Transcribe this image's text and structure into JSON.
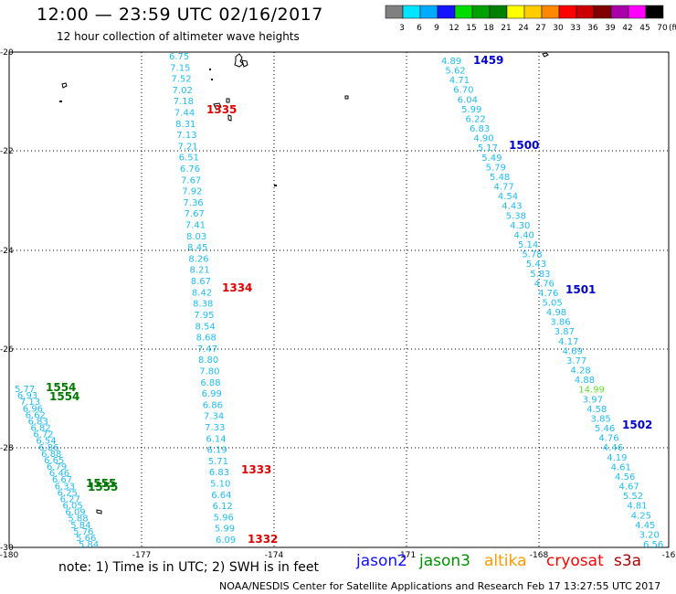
{
  "header": {
    "title": "12:00 — 23:59 UTC 02/16/2017",
    "subtitle": "12 hour collection of altimeter wave heights"
  },
  "colorbar": {
    "unit": "(ft)",
    "labels": [
      "3",
      "6",
      "9",
      "12",
      "15",
      "18",
      "21",
      "24",
      "27",
      "30",
      "33",
      "36",
      "39",
      "42",
      "45",
      "70"
    ],
    "colors": [
      "#808080",
      "#00e4ff",
      "#00aaff",
      "#1414ff",
      "#00dc00",
      "#00a000",
      "#008000",
      "#ffff00",
      "#ffcc00",
      "#ff8800",
      "#ff0000",
      "#cc0000",
      "#800000",
      "#aa00aa",
      "#ff00ff",
      "#000000"
    ]
  },
  "axes": {
    "x_ticks": [
      "-180",
      "-177",
      "-174",
      "-171",
      "-168",
      "-16"
    ],
    "y_ticks": [
      "-20",
      "-22",
      "-24",
      "-26",
      "-28",
      "-30"
    ]
  },
  "legend": {
    "note": "note: 1) Time is in UTC; 2) SWH is in feet",
    "satellites": [
      {
        "name": "jason2",
        "color": "#1010ff"
      },
      {
        "name": "jason3",
        "color": "#009000"
      },
      {
        "name": "altika",
        "color": "#ff9900"
      },
      {
        "name": "cryosat",
        "color": "#ff0000"
      },
      {
        "name": "s3a",
        "color": "#aa0000"
      }
    ]
  },
  "credit": "NOAA/NESDIS Center for Satellite Applications and Research   Feb 17 13:27:55 UTC 2017",
  "tracks": [
    {
      "id": "track-a-cryosat",
      "time_labels": [
        {
          "text": "1335",
          "color": "#dd0000"
        },
        {
          "text": "1334",
          "color": "#dd0000"
        },
        {
          "text": "1333",
          "color": "#dd0000"
        },
        {
          "text": "1332",
          "color": "#dd0000"
        }
      ],
      "values": [
        "6.75",
        "7.15",
        "7.52",
        "7.02",
        "7.18",
        "7.44",
        "8.31",
        "7.13",
        "7.21",
        "6.51",
        "6.76",
        "7.67",
        "7.92",
        "7.36",
        "7.67",
        "7.41",
        "8.03",
        "8.45",
        "8.26",
        "8.21",
        "8.67",
        "8.42",
        "8.38",
        "7.95",
        "8.54",
        "8.68",
        "7.47",
        "8.80",
        "7.80",
        "6.88",
        "6.99",
        "6.86",
        "7.34",
        "7.33",
        "6.14",
        "6.19",
        "5.71",
        "6.83",
        "5.10",
        "6.64",
        "6.12",
        "5.96",
        "5.99",
        "6.09"
      ]
    },
    {
      "id": "track-b-jason2",
      "time_labels": [
        {
          "text": "1459",
          "color": "#0000cc"
        },
        {
          "text": "1500",
          "color": "#0000cc"
        },
        {
          "text": "1501",
          "color": "#0000cc"
        },
        {
          "text": "1502",
          "color": "#0000cc"
        }
      ],
      "values": [
        "4.89",
        "5.62",
        "4.71",
        "6.70",
        "6.04",
        "5.99",
        "6.22",
        "6.83",
        "4.90",
        "5.17",
        "5.49",
        "5.79",
        "5.48",
        "4.77",
        "4.54",
        "4.43",
        "5.38",
        "4.30",
        "4.40",
        "5.14",
        "5.78",
        "5.43",
        "5.83",
        "4.76",
        "4.76",
        "5.05",
        "4.98",
        "3.86",
        "3.87",
        "4.17",
        "4.69",
        "3.77",
        "4.28",
        "4.88",
        "14.99",
        "3.97",
        "4.58",
        "3.85",
        "5.46",
        "4.76",
        "4.46",
        "4.19",
        "4.61",
        "4.56",
        "4.67",
        "5.52",
        "4.81",
        "4.25",
        "4.45",
        "3.20",
        "6.56"
      ],
      "highlight": {
        "index": 34,
        "color": "#66dd33"
      }
    },
    {
      "id": "track-c-jason3",
      "time_labels": [
        {
          "text": "1554",
          "color": "#007700"
        },
        {
          "text": "1554",
          "color": "#007700"
        },
        {
          "text": "1555",
          "color": "#007700"
        },
        {
          "text": "1555",
          "color": "#007700"
        }
      ],
      "values": [
        "5.77",
        "6.93",
        "7.13",
        "6.96",
        "6.62",
        "6.83",
        "6.82",
        "6.72",
        "6.54",
        "6.86",
        "6.88",
        "6.65",
        "6.79",
        "6.46",
        "6.67",
        "6.33",
        "6.25",
        "6.27",
        "6.05",
        "6.09",
        "5.88",
        "5.84",
        "5.76",
        "5.66",
        "5.84"
      ]
    }
  ]
}
